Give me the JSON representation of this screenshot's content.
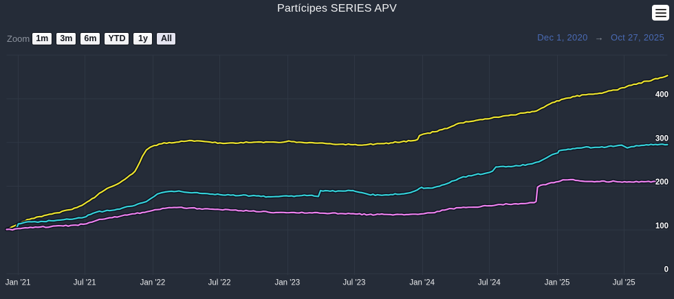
{
  "header": {
    "title": "Partícipes SERIES APV"
  },
  "range_selector": {
    "zoom_label": "Zoom",
    "buttons": [
      {
        "label": "1m",
        "selected": false
      },
      {
        "label": "3m",
        "selected": false
      },
      {
        "label": "6m",
        "selected": false
      },
      {
        "label": "YTD",
        "selected": false
      },
      {
        "label": "1y",
        "selected": false
      },
      {
        "label": "All",
        "selected": true
      }
    ],
    "from_date": "Dec 1, 2020",
    "separator": "→",
    "to_date": "Oct 27, 2025"
  },
  "colors": {
    "background": "#252c38",
    "grid": "#2f3744",
    "x_axis_label": "#e9eaec",
    "y_axis_label": "#ffffff",
    "title": "#f0f1f3",
    "zoom_label": "#8d939e",
    "input_text": "#4a6cc3",
    "series_halo": "#0d1220"
  },
  "chart_data": {
    "type": "line",
    "title": "Partícipes SERIES APV",
    "x_type": "datetime",
    "x_range": [
      "2020-12-01",
      "2025-10-27"
    ],
    "ylim": [
      0,
      500
    ],
    "grid": true,
    "legend_position": "none",
    "x_ticks": [
      {
        "date": "2021-01-01",
        "label": "Jan '21"
      },
      {
        "date": "2021-07-01",
        "label": "Jul '21"
      },
      {
        "date": "2022-01-01",
        "label": "Jan '22"
      },
      {
        "date": "2022-07-01",
        "label": "Jul '22"
      },
      {
        "date": "2023-01-01",
        "label": "Jan '23"
      },
      {
        "date": "2023-07-01",
        "label": "Jul '23"
      },
      {
        "date": "2024-01-01",
        "label": "Jan '24"
      },
      {
        "date": "2024-07-01",
        "label": "Jul '24"
      },
      {
        "date": "2025-01-01",
        "label": "Jan '25"
      },
      {
        "date": "2025-07-01",
        "label": "Jul '25"
      }
    ],
    "y_ticks": [
      {
        "value": 0,
        "label": "0"
      },
      {
        "value": 100,
        "label": "100"
      },
      {
        "value": 200,
        "label": "200"
      },
      {
        "value": 300,
        "label": "300"
      },
      {
        "value": 400,
        "label": "400"
      },
      {
        "value": 500,
        "label": ""
      }
    ],
    "series": [
      {
        "id": "series-yellow",
        "color": "#ece32d",
        "points": [
          [
            "2020-12-01",
            101.5
          ],
          [
            "2020-12-17",
            107.5
          ],
          [
            "2021-01-01",
            113
          ],
          [
            "2021-01-14",
            119
          ],
          [
            "2021-02-07",
            126
          ],
          [
            "2021-03-13",
            133
          ],
          [
            "2021-04-17",
            139
          ],
          [
            "2021-05-21",
            146
          ],
          [
            "2021-06-23",
            156
          ],
          [
            "2021-07-14",
            167
          ],
          [
            "2021-08-03",
            179
          ],
          [
            "2021-08-24",
            191
          ],
          [
            "2021-09-13",
            199.5
          ],
          [
            "2021-10-04",
            208
          ],
          [
            "2021-10-24",
            220
          ],
          [
            "2021-11-14",
            234
          ],
          [
            "2021-12-04",
            268
          ],
          [
            "2021-12-15",
            283
          ],
          [
            "2021-12-25",
            289
          ],
          [
            "2022-01-05",
            293
          ],
          [
            "2022-01-25",
            297
          ],
          [
            "2022-02-15",
            300
          ],
          [
            "2022-03-13",
            301
          ],
          [
            "2022-04-10",
            304.5
          ],
          [
            "2022-05-08",
            303.5
          ],
          [
            "2022-06-05",
            301
          ],
          [
            "2022-07-03",
            299
          ],
          [
            "2022-07-31",
            299
          ],
          [
            "2022-08-28",
            300
          ],
          [
            "2022-09-25",
            300
          ],
          [
            "2022-10-22",
            301
          ],
          [
            "2022-11-10",
            301
          ],
          [
            "2022-12-08",
            300
          ],
          [
            "2022-12-29",
            302
          ],
          [
            "2023-01-05",
            303.5
          ],
          [
            "2023-01-12",
            302
          ],
          [
            "2023-02-02",
            300.7
          ],
          [
            "2023-03-02",
            299.8
          ],
          [
            "2023-03-30",
            298.8
          ],
          [
            "2023-04-27",
            297.4
          ],
          [
            "2023-05-25",
            296
          ],
          [
            "2023-06-22",
            295.1
          ],
          [
            "2023-07-10",
            294
          ],
          [
            "2023-08-09",
            295.7
          ],
          [
            "2023-09-08",
            297.2
          ],
          [
            "2023-10-08",
            299.2
          ],
          [
            "2023-11-07",
            301.7
          ],
          [
            "2023-12-07",
            304.2
          ],
          [
            "2023-12-20",
            307
          ],
          [
            "2023-12-25",
            316
          ],
          [
            "2024-01-05",
            319.3
          ],
          [
            "2024-02-04",
            324.4
          ],
          [
            "2024-03-09",
            332
          ],
          [
            "2024-04-15",
            344.7
          ],
          [
            "2024-05-20",
            349
          ],
          [
            "2024-06-25",
            353.9
          ],
          [
            "2024-08-01",
            358.8
          ],
          [
            "2024-09-05",
            363
          ],
          [
            "2024-10-13",
            369.2
          ],
          [
            "2024-11-06",
            372
          ],
          [
            "2024-11-26",
            380.4
          ],
          [
            "2024-12-19",
            391.2
          ],
          [
            "2025-01-31",
            401.9
          ],
          [
            "2025-03-15",
            409.1
          ],
          [
            "2025-04-26",
            412.7
          ],
          [
            "2025-06-08",
            419.9
          ],
          [
            "2025-07-21",
            430.7
          ],
          [
            "2025-08-31",
            440.1
          ],
          [
            "2025-10-13",
            448.7
          ],
          [
            "2025-10-27",
            453
          ]
        ]
      },
      {
        "id": "series-cyan",
        "color": "#35d1d8",
        "points": [
          [
            "2020-12-01",
            101.5
          ],
          [
            "2020-12-17",
            101
          ],
          [
            "2020-12-28",
            103
          ],
          [
            "2021-01-02",
            114
          ],
          [
            "2021-01-21",
            117.5
          ],
          [
            "2021-02-07",
            118.4
          ],
          [
            "2021-02-24",
            117.5
          ],
          [
            "2021-03-13",
            119
          ],
          [
            "2021-03-31",
            121
          ],
          [
            "2021-04-17",
            122
          ],
          [
            "2021-05-04",
            123.3
          ],
          [
            "2021-05-21",
            124
          ],
          [
            "2021-06-06",
            126
          ],
          [
            "2021-06-23",
            127.6
          ],
          [
            "2021-07-04",
            130
          ],
          [
            "2021-07-10",
            134
          ],
          [
            "2021-07-23",
            138
          ],
          [
            "2021-08-03",
            141
          ],
          [
            "2021-08-24",
            143
          ],
          [
            "2021-09-13",
            144.8
          ],
          [
            "2021-10-04",
            147.6
          ],
          [
            "2021-10-24",
            153.4
          ],
          [
            "2021-11-14",
            156.2
          ],
          [
            "2021-12-04",
            162
          ],
          [
            "2021-12-15",
            164.9
          ],
          [
            "2021-12-25",
            170.7
          ],
          [
            "2022-01-05",
            176.4
          ],
          [
            "2022-01-14",
            182.3
          ],
          [
            "2022-01-25",
            185.1
          ],
          [
            "2022-02-04",
            186.8
          ],
          [
            "2022-02-15",
            188
          ],
          [
            "2022-03-13",
            189.2
          ],
          [
            "2022-04-10",
            185.2
          ],
          [
            "2022-05-08",
            183.8
          ],
          [
            "2022-06-05",
            181.9
          ],
          [
            "2022-07-03",
            180.5
          ],
          [
            "2022-07-31",
            179.5
          ],
          [
            "2022-08-28",
            179
          ],
          [
            "2022-09-25",
            178.1
          ],
          [
            "2022-10-22",
            176.7
          ],
          [
            "2022-11-10",
            175.8
          ],
          [
            "2022-12-08",
            176.3
          ],
          [
            "2023-01-05",
            177.2
          ],
          [
            "2023-02-02",
            178.1
          ],
          [
            "2023-03-02",
            179
          ],
          [
            "2023-03-21",
            177
          ],
          [
            "2023-03-26",
            176.5
          ],
          [
            "2023-04-01",
            190
          ],
          [
            "2023-04-27",
            188.5
          ],
          [
            "2023-05-25",
            189
          ],
          [
            "2023-06-22",
            189.8
          ],
          [
            "2023-07-10",
            187
          ],
          [
            "2023-08-09",
            181
          ],
          [
            "2023-09-08",
            179.8
          ],
          [
            "2023-10-08",
            180.8
          ],
          [
            "2023-11-07",
            182.3
          ],
          [
            "2023-12-07",
            187.4
          ],
          [
            "2023-12-25",
            195
          ],
          [
            "2023-12-31",
            197.5
          ],
          [
            "2024-01-05",
            195
          ],
          [
            "2024-02-04",
            197.5
          ],
          [
            "2024-03-09",
            206
          ],
          [
            "2024-04-15",
            219.3
          ],
          [
            "2024-05-20",
            225.4
          ],
          [
            "2024-06-25",
            230.3
          ],
          [
            "2024-07-10",
            234.5
          ],
          [
            "2024-07-19",
            244
          ],
          [
            "2024-08-01",
            245
          ],
          [
            "2024-09-05",
            245.6
          ],
          [
            "2024-10-13",
            249.9
          ],
          [
            "2024-11-06",
            254.7
          ],
          [
            "2024-11-26",
            261.6
          ],
          [
            "2024-12-19",
            272.4
          ],
          [
            "2025-01-03",
            276
          ],
          [
            "2025-01-06",
            281
          ],
          [
            "2025-01-31",
            284.7
          ],
          [
            "2025-03-15",
            288.9
          ],
          [
            "2025-04-26",
            288.9
          ],
          [
            "2025-06-08",
            291.9
          ],
          [
            "2025-06-25",
            294
          ],
          [
            "2025-07-10",
            287.5
          ],
          [
            "2025-07-21",
            290.4
          ],
          [
            "2025-08-31",
            294.7
          ],
          [
            "2025-10-13",
            296.2
          ],
          [
            "2025-10-27",
            295
          ]
        ]
      },
      {
        "id": "series-violet",
        "color": "#ee82ee",
        "points": [
          [
            "2020-12-01",
            101
          ],
          [
            "2020-12-17",
            100
          ],
          [
            "2021-01-01",
            103
          ],
          [
            "2021-01-21",
            105
          ],
          [
            "2021-02-24",
            106
          ],
          [
            "2021-03-31",
            107.5
          ],
          [
            "2021-05-04",
            109
          ],
          [
            "2021-06-06",
            111
          ],
          [
            "2021-06-27",
            113
          ],
          [
            "2021-07-14",
            117
          ],
          [
            "2021-08-03",
            122
          ],
          [
            "2021-08-24",
            125
          ],
          [
            "2021-09-13",
            128
          ],
          [
            "2021-10-04",
            131
          ],
          [
            "2021-10-24",
            134
          ],
          [
            "2021-11-14",
            137
          ],
          [
            "2021-12-04",
            140
          ],
          [
            "2021-12-25",
            143
          ],
          [
            "2022-01-14",
            146.5
          ],
          [
            "2022-02-04",
            149.5
          ],
          [
            "2022-02-15",
            151
          ],
          [
            "2022-02-28",
            151.3
          ],
          [
            "2022-03-13",
            151.5
          ],
          [
            "2022-04-10",
            150.1
          ],
          [
            "2022-05-08",
            148.7
          ],
          [
            "2022-06-05",
            147.8
          ],
          [
            "2022-07-03",
            146.4
          ],
          [
            "2022-07-31",
            145.4
          ],
          [
            "2022-08-28",
            144
          ],
          [
            "2022-09-25",
            143.1
          ],
          [
            "2022-10-22",
            141.7
          ],
          [
            "2022-11-10",
            140.7
          ],
          [
            "2022-12-08",
            139.8
          ],
          [
            "2023-01-05",
            139.3
          ],
          [
            "2023-02-02",
            138.9
          ],
          [
            "2023-03-02",
            139.3
          ],
          [
            "2023-03-30",
            138.4
          ],
          [
            "2023-04-27",
            137.9
          ],
          [
            "2023-05-25",
            137.5
          ],
          [
            "2023-06-22",
            137.1
          ],
          [
            "2023-07-10",
            136.3
          ],
          [
            "2023-08-09",
            135
          ],
          [
            "2023-09-08",
            135.5
          ],
          [
            "2023-10-08",
            135
          ],
          [
            "2023-11-07",
            135.5
          ],
          [
            "2023-12-07",
            136
          ],
          [
            "2024-01-05",
            137
          ],
          [
            "2024-02-04",
            139.5
          ],
          [
            "2024-03-09",
            147
          ],
          [
            "2024-04-15",
            150.7
          ],
          [
            "2024-05-20",
            152
          ],
          [
            "2024-06-25",
            155
          ],
          [
            "2024-08-01",
            158.1
          ],
          [
            "2024-09-05",
            159.4
          ],
          [
            "2024-10-13",
            161.1
          ],
          [
            "2024-10-31",
            162.4
          ],
          [
            "2024-11-05",
            165
          ],
          [
            "2024-11-09",
            198
          ],
          [
            "2024-11-17",
            202
          ],
          [
            "2024-12-08",
            206
          ],
          [
            "2024-12-23",
            208
          ],
          [
            "2025-01-10",
            212
          ],
          [
            "2025-01-23",
            214.5
          ],
          [
            "2025-02-07",
            215
          ],
          [
            "2025-02-26",
            213
          ],
          [
            "2025-03-16",
            211
          ],
          [
            "2025-04-26",
            210.5
          ],
          [
            "2025-06-08",
            210.8
          ],
          [
            "2025-07-21",
            209.5
          ],
          [
            "2025-08-31",
            210.5
          ],
          [
            "2025-10-13",
            210
          ],
          [
            "2025-10-27",
            210
          ]
        ]
      }
    ]
  }
}
